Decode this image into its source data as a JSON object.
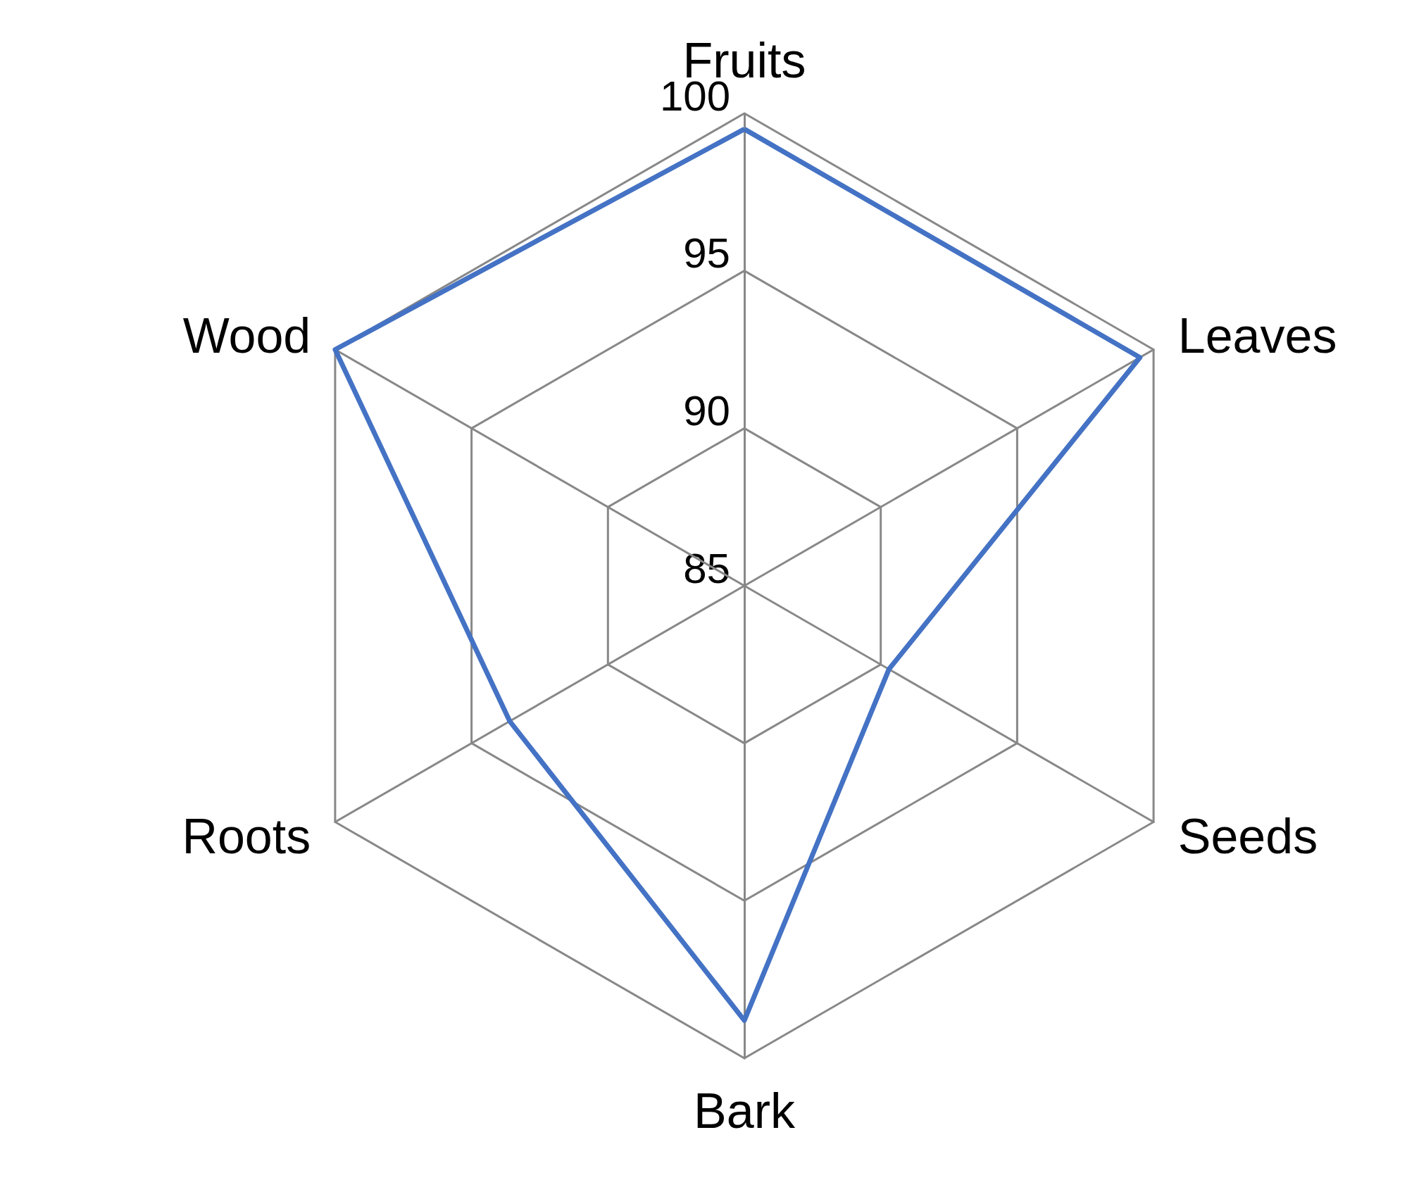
{
  "chart_data": {
    "type": "radar",
    "categories": [
      "Fruits",
      "Leaves",
      "Seeds",
      "Bark",
      "Roots",
      "Wood"
    ],
    "series": [
      {
        "color": "#4472c4",
        "values": [
          99.5,
          99.5,
          90.3,
          98.8,
          93.6,
          100
        ]
      }
    ],
    "ylim": [
      85,
      100
    ],
    "yticks": [
      85,
      90,
      95,
      100
    ],
    "grid": true,
    "marker": "none",
    "line_style": "solid"
  }
}
